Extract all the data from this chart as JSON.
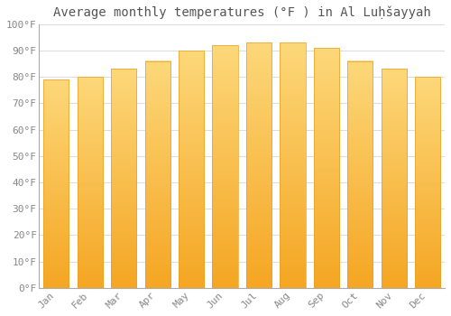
{
  "title": "Average monthly temperatures (°F ) in Al Luḥšayyah",
  "months": [
    "Jan",
    "Feb",
    "Mar",
    "Apr",
    "May",
    "Jun",
    "Jul",
    "Aug",
    "Sep",
    "Oct",
    "Nov",
    "Dec"
  ],
  "values": [
    79,
    80,
    83,
    86,
    90,
    92,
    93,
    93,
    91,
    86,
    83,
    80
  ],
  "bar_color_top": "#FDD87A",
  "bar_color_bottom": "#F5A623",
  "bar_edge_color": "#E8A020",
  "background_color": "#FFFFFF",
  "grid_color": "#DDDDDD",
  "ylim": [
    0,
    100
  ],
  "yticks": [
    0,
    10,
    20,
    30,
    40,
    50,
    60,
    70,
    80,
    90,
    100
  ],
  "ytick_labels": [
    "0°F",
    "10°F",
    "20°F",
    "30°F",
    "40°F",
    "50°F",
    "60°F",
    "70°F",
    "80°F",
    "90°F",
    "100°F"
  ],
  "title_fontsize": 10,
  "tick_fontsize": 8,
  "title_color": "#555555",
  "tick_color": "#888888"
}
